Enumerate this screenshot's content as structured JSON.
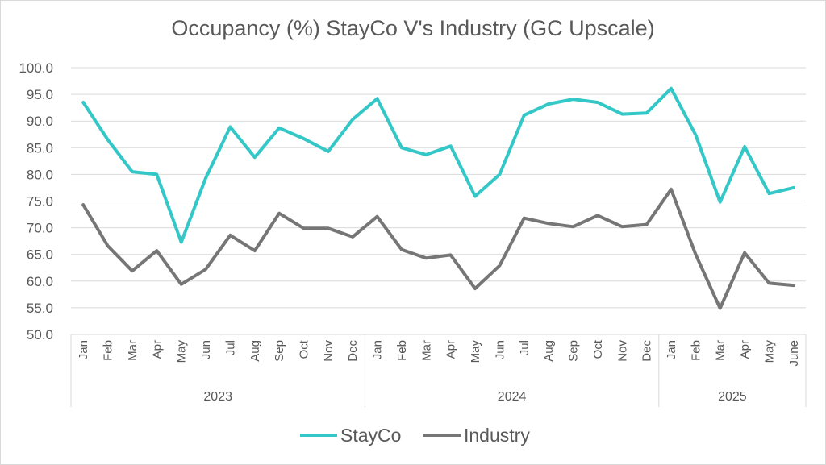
{
  "chart_data": {
    "type": "line",
    "title": "Occupancy (%) StayCo V's Industry (GC Upscale)",
    "ylim": [
      50,
      100
    ],
    "yticks": [
      "100.0",
      "95.0",
      "90.0",
      "85.0",
      "80.0",
      "75.0",
      "70.0",
      "65.0",
      "60.0",
      "55.0",
      "50.0"
    ],
    "categories": [
      "Jan",
      "Feb",
      "Mar",
      "Apr",
      "May",
      "Jun",
      "Jul",
      "Aug",
      "Sep",
      "Oct",
      "Nov",
      "Dec",
      "Jan",
      "Feb",
      "Mar",
      "Apr",
      "May",
      "Jun",
      "Jul",
      "Aug",
      "Sep",
      "Oct",
      "Nov",
      "Dec",
      "Jan",
      "Feb",
      "Mar",
      "Apr",
      "May",
      "June"
    ],
    "years": [
      {
        "label": "2023",
        "count": 12
      },
      {
        "label": "2024",
        "count": 12
      },
      {
        "label": "2025",
        "count": 6
      }
    ],
    "grid": true,
    "legend_position": "bottom",
    "series": [
      {
        "name": "StayCo",
        "color": "#33c7c7",
        "values": [
          93.5,
          86.5,
          80.5,
          80.0,
          67.3,
          79.3,
          88.9,
          83.2,
          88.7,
          86.7,
          84.3,
          90.3,
          94.2,
          85.0,
          83.7,
          85.3,
          75.9,
          80.0,
          91.1,
          93.2,
          94.1,
          93.5,
          91.3,
          91.5,
          96.1,
          87.4,
          74.8,
          85.2,
          76.4,
          77.5
        ]
      },
      {
        "name": "Industry",
        "color": "#767676",
        "values": [
          74.3,
          66.6,
          61.9,
          65.7,
          59.4,
          62.2,
          68.6,
          65.7,
          72.7,
          69.9,
          69.9,
          68.3,
          72.1,
          65.9,
          64.3,
          64.9,
          58.6,
          62.9,
          71.8,
          70.8,
          70.2,
          72.3,
          70.2,
          70.6,
          77.2,
          65.0,
          54.9,
          65.3,
          59.6,
          59.2
        ]
      }
    ]
  }
}
